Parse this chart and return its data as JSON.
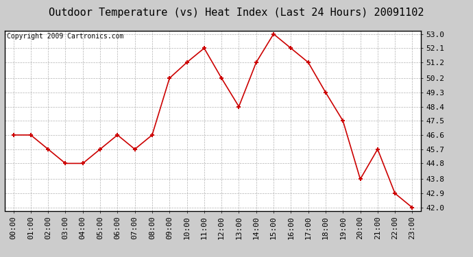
{
  "title": "Outdoor Temperature (vs) Heat Index (Last 24 Hours) 20091102",
  "copyright": "Copyright 2009 Cartronics.com",
  "x_labels": [
    "00:00",
    "01:00",
    "02:00",
    "03:00",
    "04:00",
    "05:00",
    "06:00",
    "07:00",
    "08:00",
    "09:00",
    "10:00",
    "11:00",
    "12:00",
    "13:00",
    "14:00",
    "15:00",
    "16:00",
    "17:00",
    "18:00",
    "19:00",
    "20:00",
    "21:00",
    "22:00",
    "23:00"
  ],
  "y_values": [
    46.6,
    46.6,
    45.7,
    44.8,
    44.8,
    45.7,
    46.6,
    45.7,
    46.6,
    50.2,
    51.2,
    52.1,
    50.2,
    48.4,
    51.2,
    53.0,
    52.1,
    51.2,
    49.3,
    47.5,
    43.8,
    45.7,
    42.9,
    42.0
  ],
  "line_color": "#cc0000",
  "marker": "+",
  "marker_color": "#cc0000",
  "marker_size": 5,
  "background_color": "#ffffff",
  "grid_color": "#aaaaaa",
  "y_min": 42.0,
  "y_max": 53.0,
  "y_ticks": [
    42.0,
    42.9,
    43.8,
    44.8,
    45.7,
    46.6,
    47.5,
    48.4,
    49.3,
    50.2,
    51.2,
    52.1,
    53.0
  ],
  "title_fontsize": 11,
  "copyright_fontsize": 7,
  "tick_fontsize": 8,
  "fig_bg_color": "#ffffff",
  "outer_bg_color": "#cccccc"
}
